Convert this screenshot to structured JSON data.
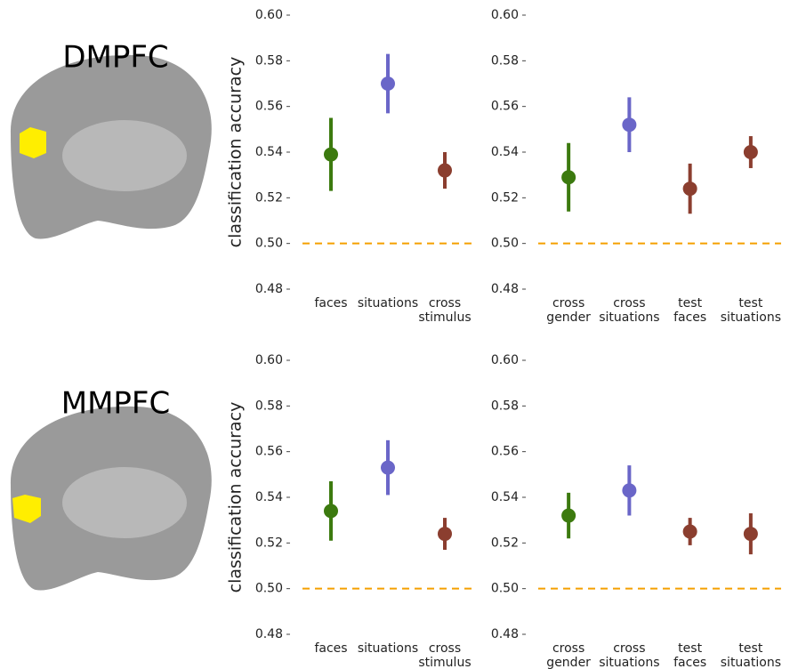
{
  "regions": [
    "DMPFC",
    "MMPFC"
  ],
  "chart_data": [
    {
      "type": "dot_error",
      "ylabel": "classification accuracy",
      "categories": [
        "faces",
        "situations",
        "cross stimulus"
      ],
      "values": [
        0.539,
        0.57,
        0.532
      ],
      "errors": [
        0.016,
        0.013,
        0.008
      ],
      "colors": [
        "#3c7a0f",
        "#6a66c8",
        "#8b3e2f"
      ],
      "ylim": [
        0.48,
        0.6
      ],
      "yticks": [
        {
          "value": 0.48,
          "label": "0.48"
        },
        {
          "value": 0.5,
          "label": "0.50"
        },
        0.52,
        0.54,
        0.56,
        0.58,
        {
          "value": 0.6,
          "label": "0.60"
        }
      ],
      "refline": 0.5,
      "refline_color": "#f5a000"
    },
    {
      "type": "dot_error",
      "categories": [
        "cross gender",
        "cross situations",
        "test faces",
        "test situations"
      ],
      "values": [
        0.529,
        0.552,
        0.524,
        0.54
      ],
      "errors": [
        0.015,
        0.012,
        0.011,
        0.007
      ],
      "colors": [
        "#3c7a0f",
        "#6a66c8",
        "#8b3e2f",
        "#8b3e2f"
      ],
      "ylim": [
        0.48,
        0.6
      ],
      "yticks": [
        {
          "value": 0.48,
          "label": "0.48"
        },
        {
          "value": 0.5,
          "label": "0.50"
        },
        0.52,
        0.54,
        0.56,
        0.58,
        {
          "value": 0.6,
          "label": "0.60"
        }
      ],
      "refline": 0.5,
      "refline_color": "#f5a000"
    },
    {
      "type": "dot_error",
      "ylabel": "classification accuracy",
      "categories": [
        "faces",
        "situations",
        "cross stimulus"
      ],
      "values": [
        0.534,
        0.553,
        0.524
      ],
      "errors": [
        0.013,
        0.012,
        0.007
      ],
      "colors": [
        "#3c7a0f",
        "#6a66c8",
        "#8b3e2f"
      ],
      "ylim": [
        0.48,
        0.6
      ],
      "yticks": [
        {
          "value": 0.48,
          "label": "0.48"
        },
        {
          "value": 0.5,
          "label": "0.50"
        },
        0.52,
        0.54,
        0.56,
        0.58,
        {
          "value": 0.6,
          "label": "0.60"
        }
      ],
      "refline": 0.5,
      "refline_color": "#f5a000"
    },
    {
      "type": "dot_error",
      "categories": [
        "cross gender",
        "cross situations",
        "test faces",
        "test situations"
      ],
      "values": [
        0.532,
        0.543,
        0.525,
        0.524
      ],
      "errors": [
        0.01,
        0.011,
        0.006,
        0.009
      ],
      "colors": [
        "#3c7a0f",
        "#6a66c8",
        "#8b3e2f",
        "#8b3e2f"
      ],
      "ylim": [
        0.48,
        0.6
      ],
      "yticks": [
        {
          "value": 0.48,
          "label": "0.48"
        },
        {
          "value": 0.5,
          "label": "0.50"
        },
        0.52,
        0.54,
        0.56,
        0.58,
        {
          "value": 0.6,
          "label": "0.60"
        }
      ],
      "refline": 0.5,
      "refline_color": "#f5a000"
    }
  ]
}
